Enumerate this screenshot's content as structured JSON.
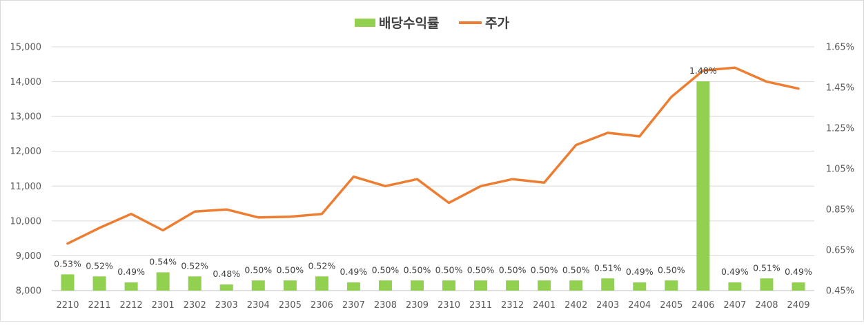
{
  "chart_data": {
    "type": "bar+line",
    "legend": [
      {
        "name": "배당수익률",
        "kind": "bar",
        "color": "#92d050"
      },
      {
        "name": "주가",
        "kind": "line",
        "color": "#ed7d31"
      }
    ],
    "categories": [
      "2210",
      "2211",
      "2212",
      "2301",
      "2302",
      "2303",
      "2304",
      "2305",
      "2306",
      "2307",
      "2308",
      "2309",
      "2310",
      "2311",
      "2312",
      "2401",
      "2402",
      "2403",
      "2404",
      "2405",
      "2406",
      "2407",
      "2408",
      "2409"
    ],
    "series": [
      {
        "name": "배당수익률",
        "axis": "right",
        "values": [
          0.53,
          0.52,
          0.49,
          0.54,
          0.52,
          0.48,
          0.5,
          0.5,
          0.52,
          0.49,
          0.5,
          0.5,
          0.5,
          0.5,
          0.5,
          0.5,
          0.5,
          0.51,
          0.49,
          0.5,
          1.48,
          0.49,
          0.51,
          0.49
        ],
        "labels": [
          "0.53%",
          "0.52%",
          "0.49%",
          "0.54%",
          "0.52%",
          "0.48%",
          "0.50%",
          "0.50%",
          "0.52%",
          "0.49%",
          "0.50%",
          "0.50%",
          "0.50%",
          "0.50%",
          "0.50%",
          "0.50%",
          "0.50%",
          "0.51%",
          "0.49%",
          "0.50%",
          "1.48%",
          "0.49%",
          "0.51%",
          "0.49%"
        ]
      },
      {
        "name": "주가",
        "axis": "left",
        "values": [
          9350,
          9800,
          10200,
          9730,
          10270,
          10330,
          10100,
          10120,
          10200,
          11270,
          11000,
          11200,
          10520,
          11000,
          11200,
          11100,
          12180,
          12530,
          12430,
          13560,
          14320,
          14400,
          14000,
          13800
        ]
      }
    ],
    "left_axis": {
      "min": 8000,
      "max": 15000,
      "ticks": [
        "8,000",
        "9,000",
        "10,000",
        "11,000",
        "12,000",
        "13,000",
        "14,000",
        "15,000"
      ]
    },
    "right_axis": {
      "min": 0.45,
      "max": 1.65,
      "ticks": [
        "0.45%",
        "0.65%",
        "0.85%",
        "1.05%",
        "1.25%",
        "1.45%",
        "1.65%"
      ]
    },
    "grid": true,
    "legend_position": "top"
  }
}
